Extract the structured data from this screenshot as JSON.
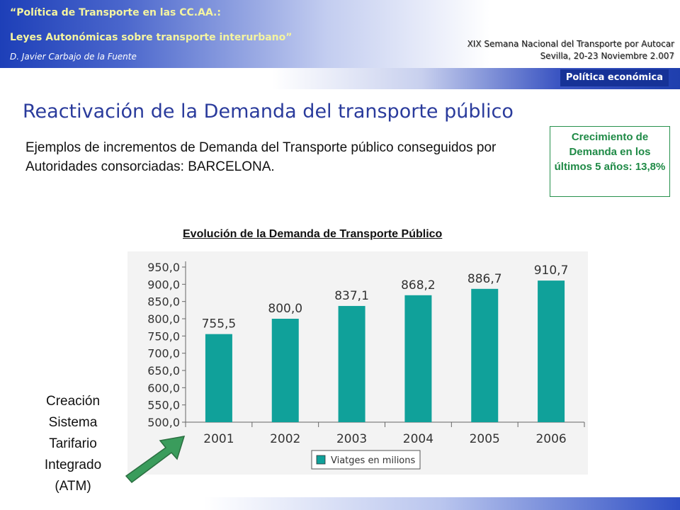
{
  "header": {
    "line1": "“Política de Transporte en las CC.AA.:",
    "line2": "Leyes Autonómicas sobre transporte interurbano”",
    "author": "D. Javier Carbajo de la Fuente",
    "event_line1": "XIX Semana Nacional del Transporte por Autocar",
    "event_line2": "Sevilla, 20-23 Noviembre 2.007"
  },
  "topic_tag": "Política económica",
  "slide": {
    "title": "Reactivación de la Demanda del transporte público",
    "subtitle": "Ejemplos de incrementos de Demanda del Transporte público conseguidos por Autoridades consorciadas: BARCELONA.",
    "callout": "Crecimiento de Demanda en los últimos 5 años: 13,8%",
    "note": "Creación Sistema Tarifario Integrado (ATM)"
  },
  "colors": {
    "bar": "#10a19a",
    "title": "#2a3b9c",
    "callout": "#1f8a46",
    "arrow": "#3a9c5c",
    "header_text": "#f4f4a0",
    "topic_tag_bg": "#163297"
  },
  "chart_data": {
    "type": "bar",
    "title": "Evolución de la Demanda de Transporte Público",
    "categories": [
      "2001",
      "2002",
      "2003",
      "2004",
      "2005",
      "2006"
    ],
    "values": [
      755.5,
      800.0,
      837.1,
      868.2,
      886.7,
      910.7
    ],
    "value_labels": [
      "755,5",
      "800,0",
      "837,1",
      "868,2",
      "886,7",
      "910,7"
    ],
    "series": [
      {
        "name": "Viatges en milions",
        "values": [
          755.5,
          800.0,
          837.1,
          868.2,
          886.7,
          910.7
        ]
      }
    ],
    "ylim": [
      500,
      950
    ],
    "yticks": [
      500,
      550,
      600,
      650,
      700,
      750,
      800,
      850,
      900,
      950
    ],
    "ytick_labels": [
      "500,0",
      "550,0",
      "600,0",
      "650,0",
      "700,0",
      "750,0",
      "800,0",
      "850,0",
      "900,0",
      "950,0"
    ],
    "xlabel": "",
    "ylabel": "",
    "grid": false,
    "legend_position": "bottom"
  }
}
